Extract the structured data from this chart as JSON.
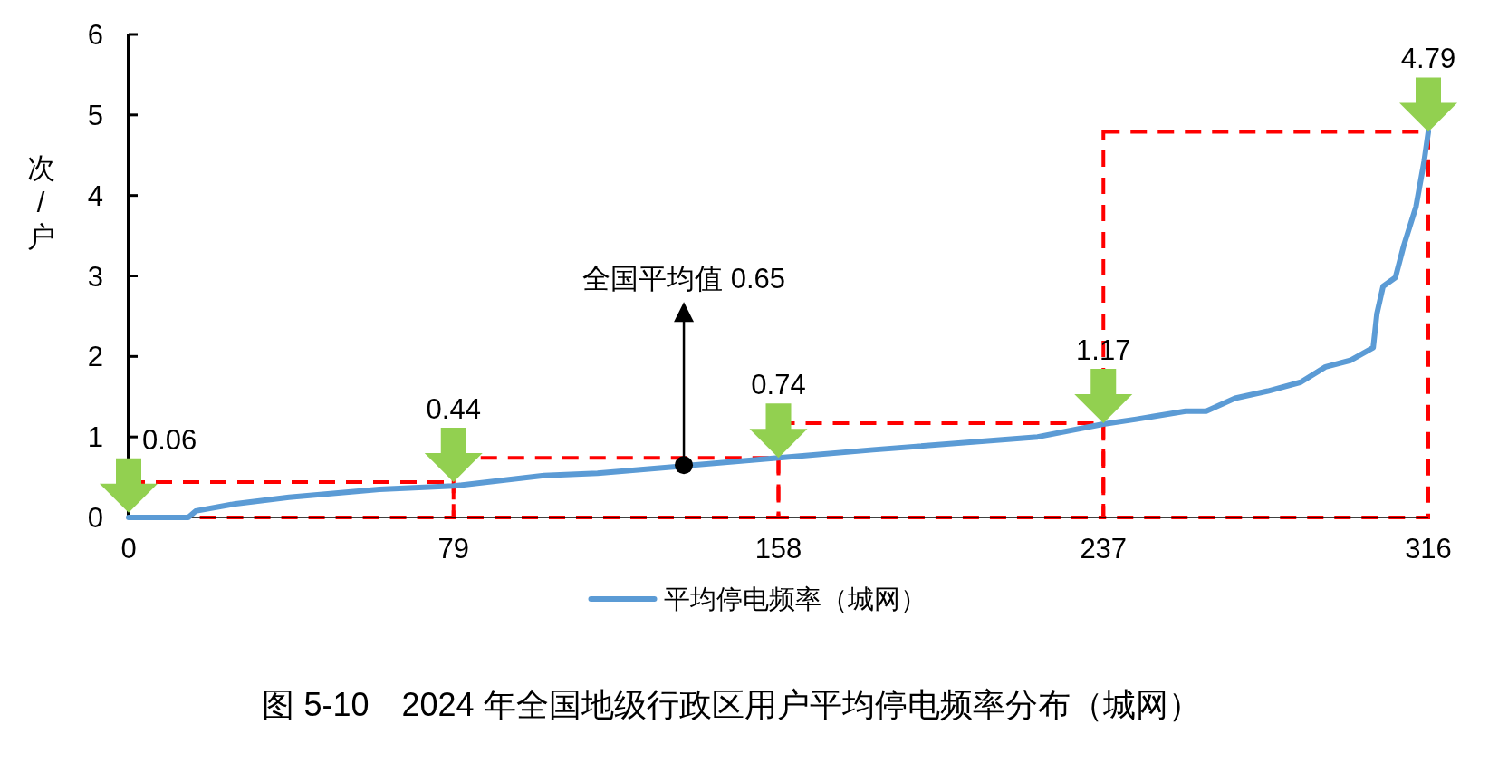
{
  "chart_data": {
    "type": "line",
    "title": "图 5-10　2024 年全国地级行政区用户平均停电频率分布（城网）",
    "ylabel": "次/户",
    "xlim": [
      0,
      316
    ],
    "xticks": [
      0,
      79,
      158,
      237,
      316
    ],
    "ylim": [
      0,
      6
    ],
    "yticks": [
      0,
      1,
      2,
      3,
      4,
      5,
      6
    ],
    "legend": "bottom",
    "series": [
      {
        "name": "平均停电频率（城网）",
        "color": "#5b9bd5",
        "x": [
          0,
          14.5,
          16.3,
          26,
          39,
          61,
          79,
          101,
          114,
          135,
          158,
          181,
          221,
          237,
          245,
          257,
          262,
          269,
          277,
          285,
          291,
          297,
          302.6,
          303.5,
          305,
          308,
          310,
          313,
          315,
          316
        ],
        "values": [
          0,
          0,
          0.08,
          0.17,
          0.25,
          0.35,
          0.39,
          0.52,
          0.55,
          0.64,
          0.74,
          0.84,
          1.0,
          1.16,
          1.22,
          1.32,
          1.32,
          1.48,
          1.57,
          1.68,
          1.87,
          1.95,
          2.11,
          2.53,
          2.87,
          2.98,
          3.37,
          3.86,
          4.43,
          4.79
        ]
      }
    ],
    "annotations": [
      {
        "text": "0.06",
        "x": 0,
        "y": 0.06
      },
      {
        "text": "0.44",
        "x": 79,
        "y": 0.44
      },
      {
        "text": "0.74",
        "x": 158,
        "y": 0.74
      },
      {
        "text": "1.17",
        "x": 237,
        "y": 1.17
      },
      {
        "text": "4.79",
        "x": 316,
        "y": 4.79
      },
      {
        "text": "全国平均值 0.65",
        "x": 135,
        "y": 0.65
      }
    ]
  }
}
